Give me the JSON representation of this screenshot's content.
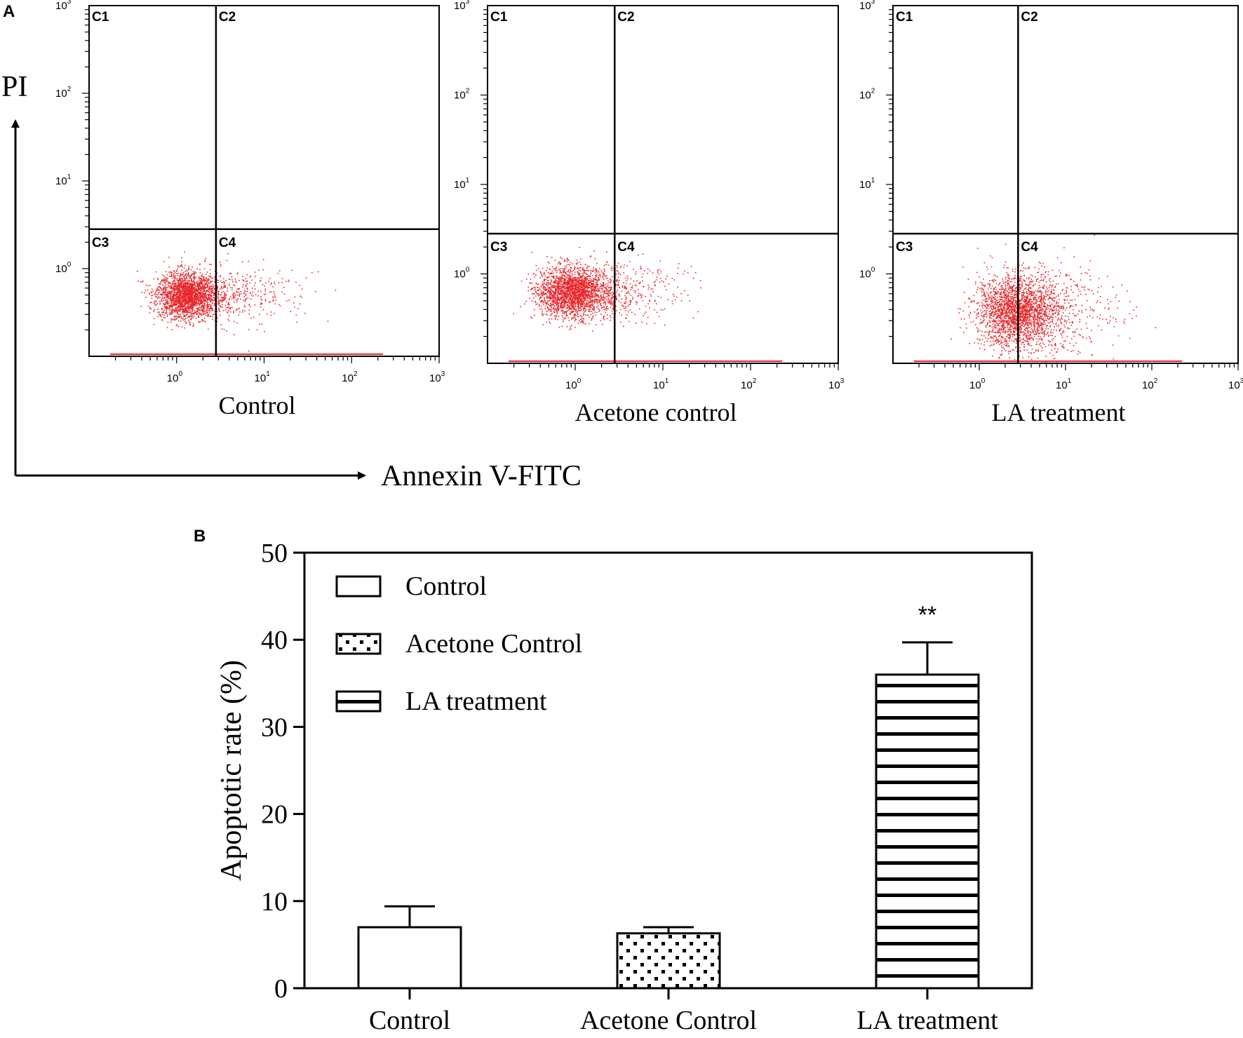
{
  "panel_a": {
    "letter": "A",
    "y_axis_title": "PI",
    "x_axis_title": "Annexin V-FITC",
    "tick_base": "10",
    "tick_exponents": [
      "0",
      "1",
      "2",
      "3"
    ],
    "quadrant_labels": [
      "C1",
      "C2",
      "C3",
      "C4"
    ],
    "dot_color": "#e8262b",
    "plots": [
      {
        "label": "Control",
        "center": [
          0.1,
          -0.3
        ],
        "spread": [
          0.17,
          0.13
        ],
        "shift_right": 0.02
      },
      {
        "label": "Acetone control",
        "center": [
          -0.05,
          -0.2
        ],
        "spread": [
          0.2,
          0.14
        ],
        "shift_right": 0.02
      },
      {
        "label": "LA treatment",
        "center": [
          0.35,
          -0.42
        ],
        "spread": [
          0.23,
          0.2
        ],
        "shift_right": 0.08
      }
    ]
  },
  "panel_b": {
    "letter": "B",
    "legend": [
      {
        "label": "Control",
        "pattern": "open"
      },
      {
        "label": "Acetone Control",
        "pattern": "dots"
      },
      {
        "label": "LA treatment",
        "pattern": "stripes"
      }
    ]
  },
  "chart_data": [
    {
      "type": "scatter",
      "title": "",
      "xlabel": "Annexin V-FITC",
      "ylabel": "PI",
      "scale": "log",
      "xlim": [
        0.1,
        1000
      ],
      "ylim": [
        0.1,
        1000
      ],
      "quadrants": [
        "C1",
        "C2",
        "C3",
        "C4"
      ],
      "series": [
        {
          "name": "Control"
        },
        {
          "name": "Acetone control"
        },
        {
          "name": "LA treatment"
        }
      ]
    },
    {
      "type": "bar",
      "title": "",
      "xlabel": "",
      "ylabel": "Apoptotic rate (%)",
      "categories": [
        "Control",
        "Acetone Control",
        "LA treatment"
      ],
      "values": [
        7.0,
        6.3,
        36.0
      ],
      "errors": [
        2.4,
        0.7,
        3.7
      ],
      "annotations": [
        "",
        "",
        "**"
      ],
      "ylim": [
        0,
        50
      ],
      "yticks": [
        0,
        10,
        20,
        30,
        40,
        50
      ],
      "legend_position": "top-left"
    }
  ]
}
